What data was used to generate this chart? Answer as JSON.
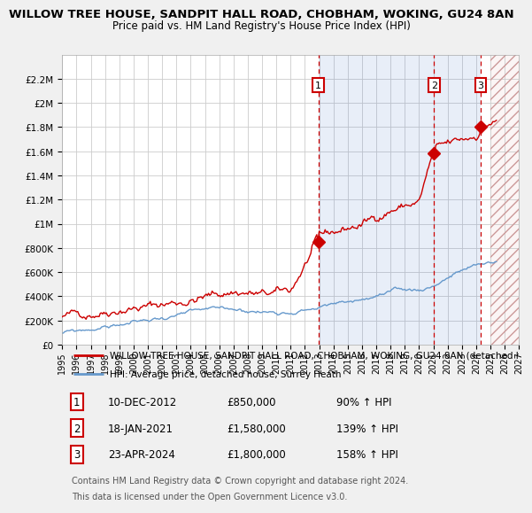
{
  "title": "WILLOW TREE HOUSE, SANDPIT HALL ROAD, CHOBHAM, WOKING, GU24 8AN",
  "subtitle": "Price paid vs. HM Land Registry's House Price Index (HPI)",
  "title_fontsize": 9.5,
  "subtitle_fontsize": 8.5,
  "ylim": [
    0,
    2400000
  ],
  "yticks": [
    0,
    200000,
    400000,
    600000,
    800000,
    1000000,
    1200000,
    1400000,
    1600000,
    1800000,
    2000000,
    2200000
  ],
  "ytick_labels": [
    "£0",
    "£200K",
    "£400K",
    "£600K",
    "£800K",
    "£1M",
    "£1.2M",
    "£1.4M",
    "£1.6M",
    "£1.8M",
    "£2M",
    "£2.2M"
  ],
  "background_color": "#f0f0f0",
  "plot_bg_color": "#ffffff",
  "grid_color": "#cccccc",
  "red_line_color": "#cc0000",
  "blue_line_color": "#6699cc",
  "sale_marker_color": "#cc0000",
  "x_start_year": 1995,
  "x_end_year": 2027,
  "xtick_years": [
    1995,
    1996,
    1997,
    1998,
    1999,
    2000,
    2001,
    2002,
    2003,
    2004,
    2005,
    2006,
    2007,
    2008,
    2009,
    2010,
    2011,
    2012,
    2013,
    2014,
    2015,
    2016,
    2017,
    2018,
    2019,
    2020,
    2021,
    2022,
    2023,
    2024,
    2025,
    2026,
    2027
  ],
  "sale_points": [
    {
      "year": 2012.94,
      "price": 850000,
      "label": "1"
    },
    {
      "year": 2021.05,
      "price": 1580000,
      "label": "2"
    },
    {
      "year": 2024.31,
      "price": 1800000,
      "label": "3"
    }
  ],
  "blue_shade_start": 2012.94,
  "blue_shade_end": 2024.31,
  "legend_entries": [
    "WILLOW TREE HOUSE, SANDPIT HALL ROAD, CHOBHAM, WOKING, GU24 8AN (detached h...",
    "HPI: Average price, detached house, Surrey Heath"
  ],
  "footer1": "Contains HM Land Registry data © Crown copyright and database right 2024.",
  "footer2": "This data is licensed under the Open Government Licence v3.0.",
  "table_entries": [
    {
      "num": "1",
      "date": "10-DEC-2012",
      "price": "£850,000",
      "pct": "90% ↑ HPI"
    },
    {
      "num": "2",
      "date": "18-JAN-2021",
      "price": "£1,580,000",
      "pct": "139% ↑ HPI"
    },
    {
      "num": "3",
      "date": "23-APR-2024",
      "price": "£1,800,000",
      "pct": "158% ↑ HPI"
    }
  ],
  "future_shade_start": 2025.0,
  "future_shade_end": 2027.0
}
